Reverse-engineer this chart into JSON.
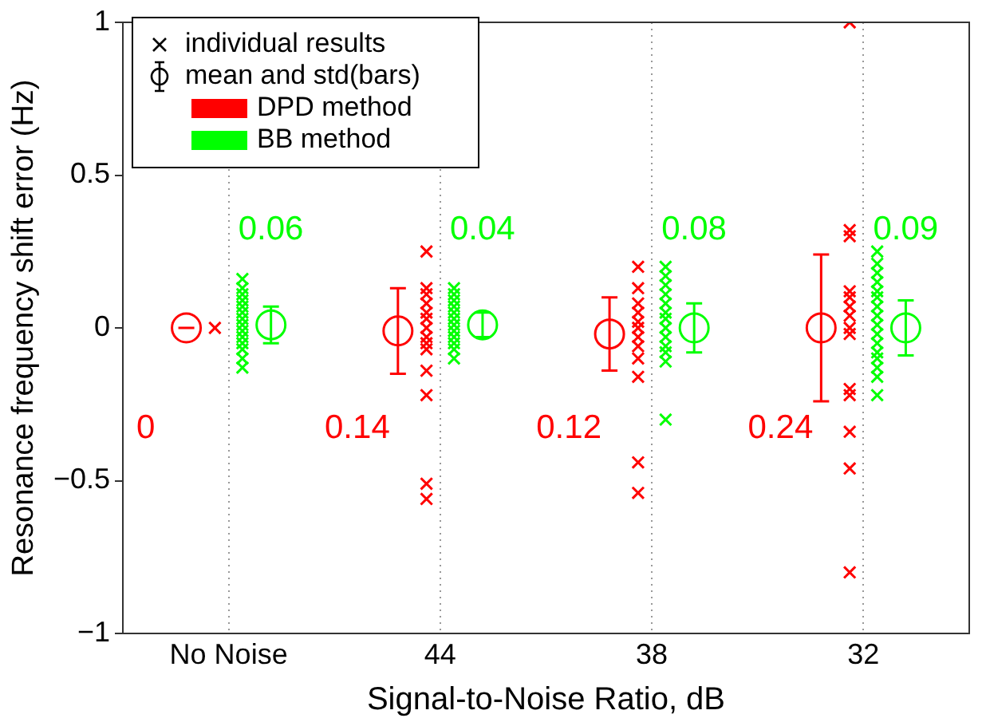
{
  "chart_data": {
    "type": "scatter",
    "xlabel": "Signal-to-Noise Ratio, dB",
    "ylabel": "Resonance frequency shift error (Hz)",
    "categories": [
      "No Noise",
      "44",
      "38",
      "32"
    ],
    "ylim": [
      -1,
      1
    ],
    "yticks": [
      -1,
      -0.5,
      0,
      0.5,
      1
    ],
    "grid": "x",
    "legend": "top left",
    "annotations": [
      "individual results",
      "mean and std(bars)",
      "0",
      "0.14",
      "0.12",
      "0.24",
      "0.06",
      "0.04",
      "0.08",
      "0.09"
    ],
    "series": [
      {
        "name": "DPD method",
        "color": "#ff0000",
        "marker": "cross",
        "x": [
          "No Noise",
          "44",
          "44",
          "44",
          "44",
          "44",
          "44",
          "44",
          "44",
          "44",
          "44",
          "44",
          "44",
          "44",
          "44",
          "38",
          "38",
          "38",
          "38",
          "38",
          "38",
          "38",
          "38",
          "38",
          "38",
          "38",
          "38",
          "32",
          "32",
          "32",
          "32",
          "32",
          "32",
          "32",
          "32",
          "32",
          "32",
          "32",
          "32",
          "32",
          "32"
        ],
        "values": [
          0,
          0.25,
          0.13,
          0.11,
          0.08,
          0.05,
          0.03,
          0,
          -0.03,
          -0.05,
          -0.07,
          -0.14,
          -0.22,
          -0.51,
          -0.56,
          0.2,
          0.13,
          0.08,
          0.05,
          0.02,
          0,
          -0.03,
          -0.06,
          -0.1,
          -0.16,
          -0.44,
          -0.54,
          1,
          0.32,
          0.3,
          0.12,
          0.1,
          0.07,
          0.04,
          0,
          -0.02,
          -0.2,
          -0.22,
          -0.34,
          -0.46,
          -0.8
        ]
      },
      {
        "name": "BB method",
        "color": "#00ff00",
        "marker": "cross",
        "x": [
          "No Noise",
          "No Noise",
          "No Noise",
          "No Noise",
          "No Noise",
          "No Noise",
          "No Noise",
          "No Noise",
          "No Noise",
          "No Noise",
          "No Noise",
          "No Noise",
          "No Noise",
          "No Noise",
          "44",
          "44",
          "44",
          "44",
          "44",
          "44",
          "44",
          "44",
          "44",
          "44",
          "44",
          "44",
          "38",
          "38",
          "38",
          "38",
          "38",
          "38",
          "38",
          "38",
          "38",
          "38",
          "38",
          "38",
          "38",
          "32",
          "32",
          "32",
          "32",
          "32",
          "32",
          "32",
          "32",
          "32",
          "32",
          "32",
          "32",
          "32",
          "32",
          "32",
          "32"
        ],
        "values": [
          0.16,
          0.13,
          0.11,
          0.09,
          0.07,
          0.05,
          0.03,
          0.01,
          -0.01,
          -0.03,
          -0.05,
          -0.07,
          -0.1,
          -0.13,
          0.13,
          0.11,
          0.09,
          0.07,
          0.05,
          0.03,
          0.01,
          -0.01,
          -0.03,
          -0.05,
          -0.07,
          -0.1,
          0.2,
          0.17,
          0.14,
          0.11,
          0.08,
          0.05,
          0.03,
          0,
          -0.03,
          -0.06,
          -0.08,
          -0.11,
          -0.3,
          0.25,
          0.21,
          0.18,
          0.15,
          0.12,
          0.1,
          0.07,
          0.04,
          0.01,
          -0.02,
          -0.05,
          -0.08,
          -0.1,
          -0.13,
          -0.16,
          -0.22
        ]
      },
      {
        "color": "#ff0000",
        "marker": "circle",
        "x": [
          "No Noise",
          "44",
          "38",
          "32"
        ],
        "values": [
          0,
          -0.01,
          -0.02,
          0
        ],
        "errors": [
          0,
          0.14,
          0.12,
          0.24
        ]
      },
      {
        "color": "#00ff00",
        "marker": "circle",
        "x": [
          "No Noise",
          "44",
          "38",
          "32"
        ],
        "values": [
          0.01,
          0.01,
          0,
          0
        ],
        "errors": [
          0.06,
          0.04,
          0.08,
          0.09
        ]
      }
    ]
  }
}
